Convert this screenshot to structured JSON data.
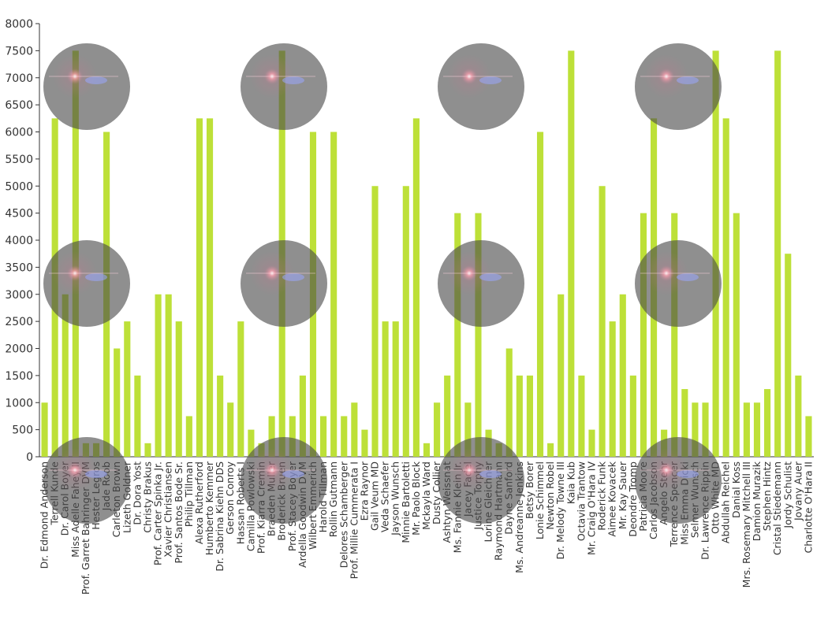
{
  "chart_data": {
    "type": "bar",
    "title": "",
    "xlabel": "",
    "ylabel": "",
    "ylim": [
      0,
      8000
    ],
    "yticks": [
      0,
      500,
      1000,
      1500,
      2000,
      2500,
      3000,
      3500,
      4000,
      4500,
      5000,
      5500,
      6000,
      6500,
      7000,
      7500,
      8000
    ],
    "grid": false,
    "bar_color": "#bde038",
    "categories": [
      "Dr. Edmond Anderson",
      "Terrell Kunde",
      "Dr. Carol Boyer",
      "Miss Adelle Fahey II",
      "Prof. Garret Bahringer DVM",
      "Hester Legros",
      "Jade Roob",
      "Carleton Brown",
      "Lizeth Goldner",
      "Dr. Dora Yost",
      "Christy Brakus",
      "Prof. Carter Spinka Jr.",
      "Xavier Christiansen",
      "Prof. Santos Bode Sr.",
      "Philip Tillman",
      "Alexa Rutherford",
      "Humberto Kemmer",
      "Dr. Sabrina Kiehn DDS",
      "Gerson Conroy",
      "Hassan Roberts I",
      "Camilla Powlowski",
      "Prof. Kiarra Cremin",
      "Braeden Muller",
      "Broderick Bruen",
      "Prof. Stacey Boyer",
      "Ardella Goodwin DVM",
      "Wilbert Emmerich",
      "Harold Tillman",
      "Rollin Gutmann",
      "Delores Schamberger",
      "Prof. Millie Cummerata I",
      "Ezra Raynor",
      "Gail Veum MD",
      "Veda Schaefer",
      "Jayson Wunsch",
      "Minnie Bartoletti",
      "Mr. Paolo Block",
      "Mckayla Ward",
      "Dusty Collier",
      "Ashtyn Weissnat",
      "Ms. Fannie Klein Jr.",
      "Jacey Fadel",
      "Justice Torphy",
      "Lorine Gleichner",
      "Raymond Hartmann",
      "Dayne Sanford",
      "Ms. Andreanne Jenkins",
      "Betsy Borer",
      "Lonie Schimmel",
      "Newton Robel",
      "Dr. Melody Towne III",
      "Kaia Kub",
      "Octavia Trantow",
      "Mr. Craig O'Hara IV",
      "Roderick Funk",
      "Aimee Kovacek",
      "Mr. Kay Sauer",
      "Deondre Tromp",
      "Patricia Moore",
      "Carlos Jacobson",
      "Angelo Stehr",
      "Terrence Spencer",
      "Miss Emma Dicki",
      "Selmer Wunsch",
      "Dr. Lawrence Rippin",
      "Otto White MD",
      "Abdullah Reichel",
      "Danial Koss",
      "Mrs. Rosemary Mitchell III",
      "Damion Murazik",
      "Stephen Hintz",
      "Cristal Stiedemann",
      "Jordy Schulist",
      "Jovany Auer",
      "Charlotte O'Hara II"
    ],
    "values": [
      1000,
      6250,
      3000,
      7500,
      250,
      250,
      6000,
      2000,
      2500,
      1500,
      250,
      3000,
      3000,
      2500,
      750,
      6250,
      6250,
      1500,
      1000,
      2500,
      500,
      250,
      750,
      7500,
      750,
      1500,
      6000,
      750,
      6000,
      750,
      1000,
      500,
      5000,
      2500,
      2500,
      5000,
      6250,
      250,
      1000,
      1500,
      4500,
      1000,
      4500,
      500,
      250,
      2000,
      1500,
      1500,
      6000,
      250,
      3000,
      7500,
      1500,
      500,
      5000,
      2500,
      3000,
      1500,
      4500,
      6250,
      500,
      4500,
      1250,
      1000,
      1000,
      7500,
      6250,
      4500,
      1000,
      1000,
      1250,
      7500,
      3750,
      1500,
      750
    ]
  }
}
